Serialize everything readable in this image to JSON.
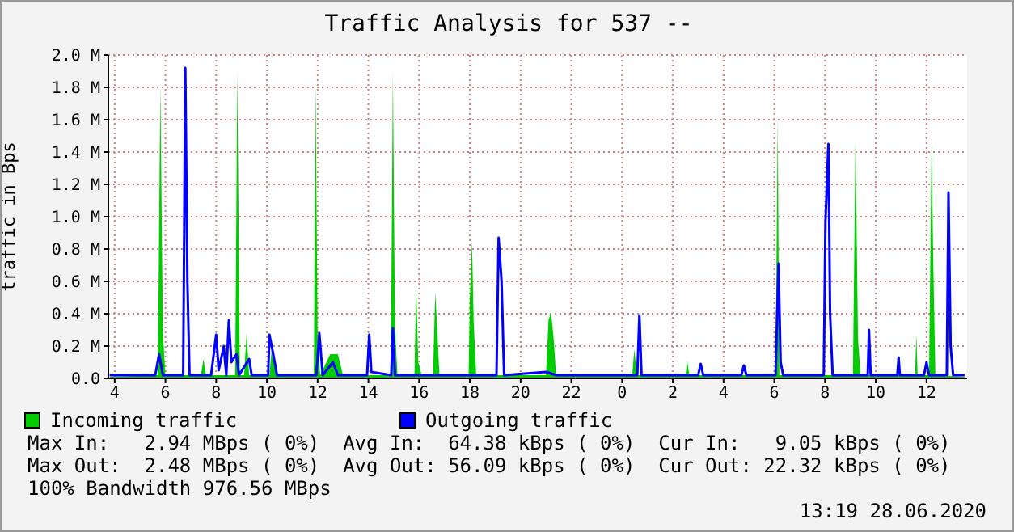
{
  "chart_data": {
    "type": "area",
    "title": "Traffic Analysis for 537 --",
    "ylabel": "traffic in Bps",
    "xlim": [
      "2020-06-27T03:45",
      "2020-06-28T13:36"
    ],
    "xticks": [
      {
        "value": "2020-06-27T04:00",
        "label": "4"
      },
      {
        "value": "2020-06-27T06:00",
        "label": "6"
      },
      {
        "value": "2020-06-27T08:00",
        "label": "8"
      },
      {
        "value": "2020-06-27T10:00",
        "label": "10"
      },
      {
        "value": "2020-06-27T12:00",
        "label": "12"
      },
      {
        "value": "2020-06-27T14:00",
        "label": "14"
      },
      {
        "value": "2020-06-27T16:00",
        "label": "16"
      },
      {
        "value": "2020-06-27T18:00",
        "label": "18"
      },
      {
        "value": "2020-06-27T20:00",
        "label": "20"
      },
      {
        "value": "2020-06-27T22:00",
        "label": "22"
      },
      {
        "value": "2020-06-28T00:00",
        "label": "0"
      },
      {
        "value": "2020-06-28T02:00",
        "label": "2"
      },
      {
        "value": "2020-06-28T04:00",
        "label": "4"
      },
      {
        "value": "2020-06-28T06:00",
        "label": "6"
      },
      {
        "value": "2020-06-28T08:00",
        "label": "8"
      },
      {
        "value": "2020-06-28T10:00",
        "label": "10"
      },
      {
        "value": "2020-06-28T12:00",
        "label": "12"
      }
    ],
    "ylim": [
      0,
      2000000
    ],
    "yticks": [
      {
        "value": 0,
        "label": "0.0"
      },
      {
        "value": 200000,
        "label": "0.2 M"
      },
      {
        "value": 400000,
        "label": "0.4 M"
      },
      {
        "value": 600000,
        "label": "0.6 M"
      },
      {
        "value": 800000,
        "label": "0.8 M"
      },
      {
        "value": 1000000,
        "label": "1.0 M"
      },
      {
        "value": 1200000,
        "label": "1.2 M"
      },
      {
        "value": 1400000,
        "label": "1.4 M"
      },
      {
        "value": 1600000,
        "label": "1.6 M"
      },
      {
        "value": 1800000,
        "label": "1.8 M"
      },
      {
        "value": 2000000,
        "label": "2.0 M"
      }
    ],
    "grid": true,
    "legend": "bottom",
    "series": [
      {
        "name": "Incoming traffic",
        "type": "area",
        "color": "#00cc00",
        "x": [
          "2020-06-27T03:48",
          "2020-06-27T05:42",
          "2020-06-27T05:48",
          "2020-06-27T05:54",
          "2020-06-27T06:00",
          "2020-06-27T07:24",
          "2020-06-27T07:30",
          "2020-06-27T07:36",
          "2020-06-27T08:45",
          "2020-06-27T08:50",
          "2020-06-27T08:56",
          "2020-06-27T09:06",
          "2020-06-27T09:12",
          "2020-06-27T09:18",
          "2020-06-27T10:06",
          "2020-06-27T10:12",
          "2020-06-27T10:24",
          "2020-06-27T11:51",
          "2020-06-27T11:55",
          "2020-06-27T12:00",
          "2020-06-27T12:06",
          "2020-06-27T12:30",
          "2020-06-27T12:48",
          "2020-06-27T13:00",
          "2020-06-27T14:53",
          "2020-06-27T14:58",
          "2020-06-27T15:03",
          "2020-06-27T15:09",
          "2020-06-27T15:49",
          "2020-06-27T15:53",
          "2020-06-27T15:58",
          "2020-06-27T16:06",
          "2020-06-27T16:33",
          "2020-06-27T16:38",
          "2020-06-27T16:42",
          "2020-06-27T16:48",
          "2020-06-27T17:57",
          "2020-06-27T18:00",
          "2020-06-27T18:05",
          "2020-06-27T18:09",
          "2020-06-27T18:15",
          "2020-06-27T21:00",
          "2020-06-27T21:06",
          "2020-06-27T21:12",
          "2020-06-27T21:18",
          "2020-06-27T21:24",
          "2020-06-28T00:24",
          "2020-06-28T00:29",
          "2020-06-28T00:35",
          "2020-06-28T02:30",
          "2020-06-28T02:34",
          "2020-06-28T02:39",
          "2020-06-28T06:03",
          "2020-06-28T06:08",
          "2020-06-28T06:12",
          "2020-06-28T09:06",
          "2020-06-28T09:12",
          "2020-06-28T09:18",
          "2020-06-28T09:24",
          "2020-06-28T11:33",
          "2020-06-28T11:36",
          "2020-06-28T11:39",
          "2020-06-28T12:06",
          "2020-06-28T12:12",
          "2020-06-28T12:16",
          "2020-06-28T12:21",
          "2020-06-28T13:30"
        ],
        "values": [
          10000,
          20000,
          1810000,
          280000,
          20000,
          20000,
          120000,
          20000,
          20000,
          1890000,
          20000,
          20000,
          280000,
          20000,
          20000,
          200000,
          20000,
          20000,
          1820000,
          280000,
          20000,
          150000,
          150000,
          20000,
          20000,
          1890000,
          300000,
          20000,
          20000,
          570000,
          100000,
          20000,
          20000,
          530000,
          350000,
          20000,
          20000,
          500000,
          850000,
          350000,
          20000,
          20000,
          360000,
          410000,
          250000,
          20000,
          20000,
          180000,
          20000,
          20000,
          110000,
          20000,
          20000,
          1600000,
          20000,
          20000,
          1470000,
          250000,
          20000,
          20000,
          270000,
          20000,
          20000,
          1450000,
          720000,
          20000,
          10000
        ]
      },
      {
        "name": "Outgoing traffic",
        "type": "line",
        "color": "#0000ff",
        "x": [
          "2020-06-27T03:48",
          "2020-06-27T05:36",
          "2020-06-27T05:45",
          "2020-06-27T05:54",
          "2020-06-27T06:42",
          "2020-06-27T06:47",
          "2020-06-27T06:52",
          "2020-06-27T06:57",
          "2020-06-27T07:48",
          "2020-06-27T08:00",
          "2020-06-27T08:06",
          "2020-06-27T08:18",
          "2020-06-27T08:24",
          "2020-06-27T08:30",
          "2020-06-27T08:36",
          "2020-06-27T08:48",
          "2020-06-27T08:54",
          "2020-06-27T09:18",
          "2020-06-27T09:24",
          "2020-06-27T10:03",
          "2020-06-27T10:06",
          "2020-06-27T10:15",
          "2020-06-27T10:24",
          "2020-06-27T11:57",
          "2020-06-27T12:04",
          "2020-06-27T12:12",
          "2020-06-27T12:36",
          "2020-06-27T12:48",
          "2020-06-27T13:57",
          "2020-06-27T14:02",
          "2020-06-27T14:07",
          "2020-06-27T14:54",
          "2020-06-27T14:58",
          "2020-06-27T15:03",
          "2020-06-27T19:03",
          "2020-06-27T19:08",
          "2020-06-27T19:15",
          "2020-06-27T19:21",
          "2020-06-27T21:00",
          "2020-06-27T21:24",
          "2020-06-28T00:36",
          "2020-06-28T00:41",
          "2020-06-28T00:46",
          "2020-06-28T03:00",
          "2020-06-28T03:06",
          "2020-06-28T03:12",
          "2020-06-28T04:42",
          "2020-06-28T04:48",
          "2020-06-28T04:54",
          "2020-06-28T06:03",
          "2020-06-28T06:10",
          "2020-06-28T06:15",
          "2020-06-28T06:21",
          "2020-06-28T07:57",
          "2020-06-28T08:01",
          "2020-06-28T08:08",
          "2020-06-28T08:12",
          "2020-06-28T08:18",
          "2020-06-28T09:41",
          "2020-06-28T09:44",
          "2020-06-28T09:48",
          "2020-06-28T10:51",
          "2020-06-28T10:54",
          "2020-06-28T10:57",
          "2020-06-28T11:54",
          "2020-06-28T12:00",
          "2020-06-28T12:06",
          "2020-06-28T12:48",
          "2020-06-28T12:52",
          "2020-06-28T12:57",
          "2020-06-28T13:03",
          "2020-06-28T13:30"
        ],
        "values": [
          20000,
          20000,
          150000,
          20000,
          20000,
          1920000,
          600000,
          20000,
          20000,
          270000,
          50000,
          200000,
          20000,
          360000,
          100000,
          150000,
          20000,
          120000,
          20000,
          20000,
          270000,
          150000,
          20000,
          20000,
          280000,
          20000,
          100000,
          20000,
          20000,
          270000,
          40000,
          20000,
          310000,
          20000,
          20000,
          870000,
          600000,
          20000,
          40000,
          20000,
          20000,
          390000,
          20000,
          20000,
          90000,
          20000,
          20000,
          80000,
          20000,
          20000,
          710000,
          100000,
          20000,
          20000,
          970000,
          1450000,
          400000,
          20000,
          20000,
          300000,
          20000,
          20000,
          130000,
          20000,
          20000,
          100000,
          20000,
          20000,
          1150000,
          200000,
          20000,
          20000
        ]
      }
    ],
    "annotations": [
      "Max In:   2.94 MBps ( 0%)  Avg In:  64.38 kBps ( 0%)  Cur In:   9.05 kBps ( 0%)",
      "Max Out:  2.48 MBps ( 0%)  Avg Out: 56.09 kBps ( 0%)  Cur Out: 22.32 kBps ( 0%)",
      "100% Bandwidth 976.56 MBps",
      "13:19 28.06.2020"
    ]
  }
}
